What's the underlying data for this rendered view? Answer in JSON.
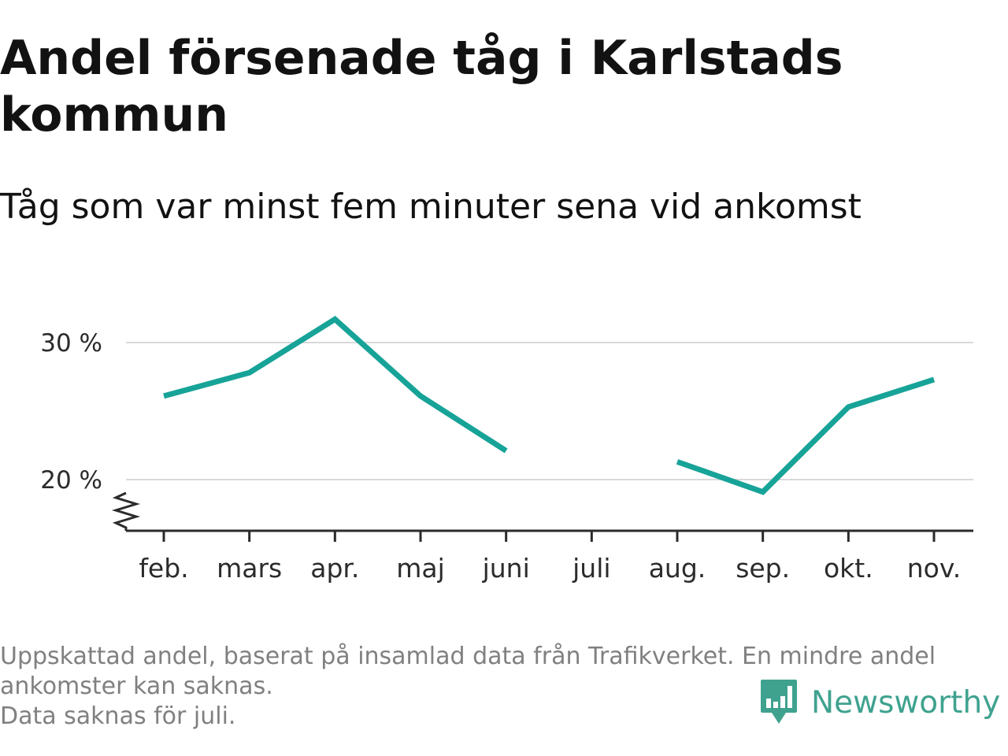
{
  "header": {
    "title": "Andel försenade tåg i Karlstads kommun",
    "subtitle": "Tåg som var minst fem minuter sena vid ankomst"
  },
  "footer": {
    "notes": [
      "Uppskattad andel, baserat på insamlad data från Trafikverket. En mindre andel ankomster kan saknas.",
      "Data saknas för juli."
    ],
    "brand": "Newsworthy",
    "brand_icon": "bar-chart-speech-bubble-icon"
  },
  "colors": {
    "line": "#17a398",
    "grid": "#d9d9d9",
    "axis": "#2b2b2b",
    "brand": "#3fa28f"
  },
  "chart_data": {
    "type": "line",
    "title": "Andel försenade tåg i Karlstads kommun",
    "subtitle": "Tåg som var minst fem minuter sena vid ankomst",
    "categories": [
      "feb.",
      "mars",
      "apr.",
      "maj",
      "juni",
      "juli",
      "aug.",
      "sep.",
      "okt.",
      "nov."
    ],
    "series": [
      {
        "values": [
          26.1,
          27.8,
          31.7,
          26.1,
          22.1,
          null,
          21.3,
          19.1,
          25.3,
          27.3
        ]
      }
    ],
    "yticks": [
      20,
      30
    ],
    "ytick_labels": [
      "20 %",
      "30 %"
    ],
    "ylim": [
      16.3,
      33
    ],
    "y_axis_break": true,
    "grid": true,
    "legend": "none"
  }
}
